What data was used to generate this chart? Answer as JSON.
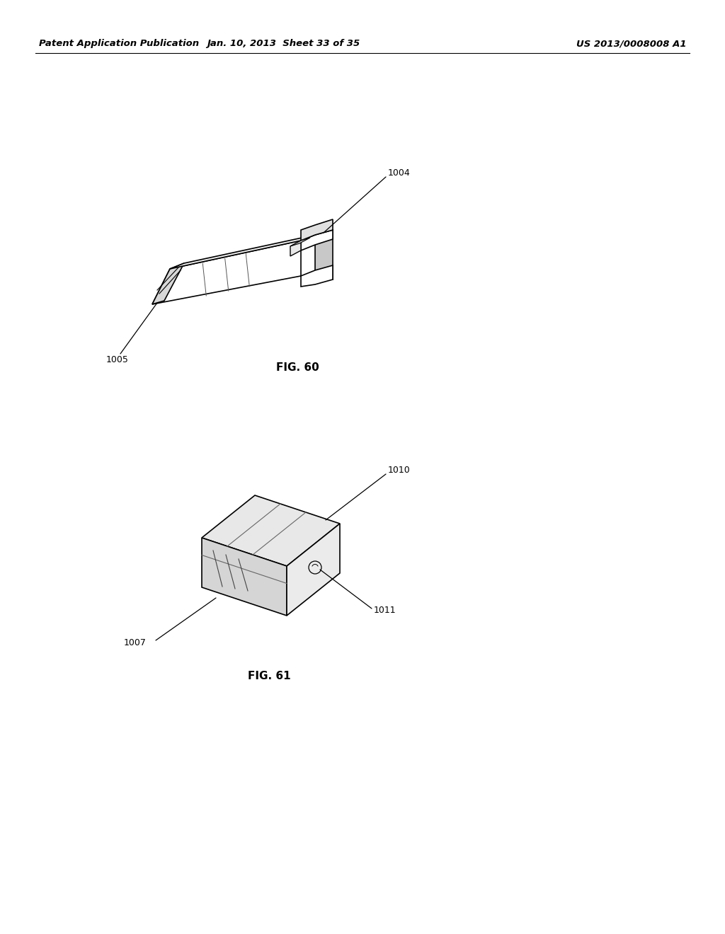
{
  "background_color": "#ffffff",
  "header_left": "Patent Application Publication",
  "header_center": "Jan. 10, 2013  Sheet 33 of 35",
  "header_right": "US 2013/0008008 A1",
  "fig60_label": "FIG. 60",
  "fig61_label": "FIG. 61",
  "label_1004": "1004",
  "label_1005": "1005",
  "label_1007": "1007",
  "label_1010": "1010",
  "label_1011": "1011",
  "line_color": "#000000",
  "text_color": "#000000"
}
